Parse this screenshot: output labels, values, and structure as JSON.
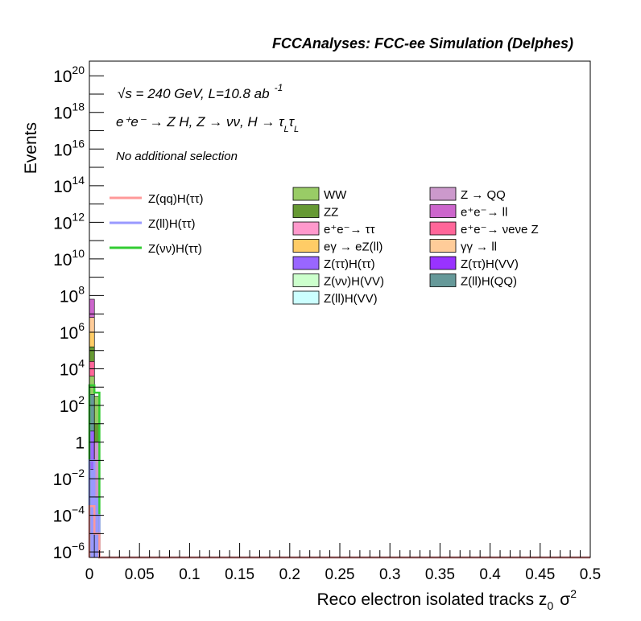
{
  "chart_data": {
    "type": "bar",
    "title": "FCCAnalyses: FCC-ee Simulation (Delphes)",
    "xlabel": "Reco electron isolated tracks z",
    "xlabel_sub": "0",
    "xlabel_sigma": "σ",
    "xlabel_sup": "2",
    "ylabel": "Events",
    "xlim": [
      0,
      0.5
    ],
    "ylim_log10": [
      -6.3,
      20.8
    ],
    "log_y": true,
    "x_ticks": [
      "0",
      "0.05",
      "0.1",
      "0.15",
      "0.2",
      "0.25",
      "0.3",
      "0.35",
      "0.4",
      "0.45",
      "0.5"
    ],
    "y_ticks": [
      {
        "exp": -6,
        "base": "10",
        "sup": "−6"
      },
      {
        "exp": -4,
        "base": "10",
        "sup": "−4"
      },
      {
        "exp": -2,
        "base": "10",
        "sup": "−2"
      },
      {
        "exp": 0,
        "base": "1",
        "sup": ""
      },
      {
        "exp": 2,
        "base": "10",
        "sup": "2"
      },
      {
        "exp": 4,
        "base": "10",
        "sup": "4"
      },
      {
        "exp": 6,
        "base": "10",
        "sup": "6"
      },
      {
        "exp": 8,
        "base": "10",
        "sup": "8"
      },
      {
        "exp": 10,
        "base": "10",
        "sup": "10"
      },
      {
        "exp": 12,
        "base": "10",
        "sup": "12"
      },
      {
        "exp": 14,
        "base": "10",
        "sup": "14"
      },
      {
        "exp": 16,
        "base": "10",
        "sup": "16"
      },
      {
        "exp": 18,
        "base": "10",
        "sup": "18"
      },
      {
        "exp": 20,
        "base": "10",
        "sup": "20"
      }
    ],
    "annotations": [
      {
        "text": "√s = 240 GeV, L=10.8 ab",
        "sup": "-1"
      },
      {
        "text": "e⁺e⁻ → Z H, Z → νν, H → τ",
        "sub1": "L",
        "mid": "τ",
        "sub2": "L"
      },
      {
        "text": "No additional selection"
      }
    ],
    "legend_lines": [
      {
        "name": "Z(qq)H(ττ)",
        "color": "#ff9999"
      },
      {
        "name": "Z(ll)H(ττ)",
        "color": "#9999ff"
      },
      {
        "name": "Z(νν)H(ττ)",
        "color": "#33cc33"
      }
    ],
    "legend_stack_col1": [
      {
        "name": "WW",
        "color": "#99cc66"
      },
      {
        "name": "ZZ",
        "color": "#669933"
      },
      {
        "name": "e⁺e⁻→ ττ",
        "color": "#ff99cc"
      },
      {
        "name": "eγ → eZ(ll)",
        "color": "#ffcc66"
      },
      {
        "name": "Z(ττ)H(ττ)",
        "color": "#9966ff"
      },
      {
        "name": "Z(νν)H(VV)",
        "color": "#ccffcc"
      },
      {
        "name": "Z(ll)H(VV)",
        "color": "#ccffff"
      }
    ],
    "legend_stack_col2": [
      {
        "name": "Z → QQ",
        "color": "#cc99cc"
      },
      {
        "name": "e⁺e⁻→ ll",
        "color": "#cc66cc"
      },
      {
        "name": "e⁺e⁻→ νeνe Z",
        "color": "#ff6699"
      },
      {
        "name": "γγ → ll",
        "color": "#ffcc99"
      },
      {
        "name": "Z(ττ)H(VV)",
        "color": "#9933ff"
      },
      {
        "name": "Z(ll)H(QQ)",
        "color": "#669999"
      }
    ],
    "stack_bins": [
      {
        "x0": 0.0,
        "x1": 0.005,
        "layers": [
          {
            "top_log10": 7.8,
            "color": "#cc66cc"
          },
          {
            "top_log10": 6.8,
            "color": "#ffcc99"
          },
          {
            "top_log10": 6.0,
            "color": "#ffcc66"
          },
          {
            "top_log10": 5.2,
            "color": "#669933"
          },
          {
            "top_log10": 4.4,
            "color": "#ff6699"
          },
          {
            "top_log10": 3.6,
            "color": "#99cc66"
          },
          {
            "top_log10": 2.6,
            "color": "#669999"
          },
          {
            "top_log10": 0.6,
            "color": "#9966ff"
          },
          {
            "top_log10": -1.5,
            "color": "#9999ff"
          }
        ]
      },
      {
        "x0": 0.005,
        "x1": 0.01,
        "layers": [
          {
            "top_log10": 2.5,
            "color": "#99cc66"
          },
          {
            "top_log10": 1.0,
            "color": "#669933"
          },
          {
            "top_log10": 0.0,
            "color": "#cc99cc"
          },
          {
            "top_log10": -3.0,
            "color": "#9999ff"
          }
        ]
      }
    ],
    "signal_lines": [
      {
        "name": "Z(νν)H(ττ)",
        "color": "#33cc33",
        "bins_log10": [
          3.1,
          2.7
        ]
      },
      {
        "name": "Z(ll)H(ττ)",
        "color": "#9999ff",
        "bins_log10": [
          -1.0,
          -4.0
        ]
      },
      {
        "name": "Z(qq)H(ττ)",
        "color": "#ff9999",
        "bins_log10": [
          -3.5,
          -5.0
        ]
      }
    ]
  }
}
